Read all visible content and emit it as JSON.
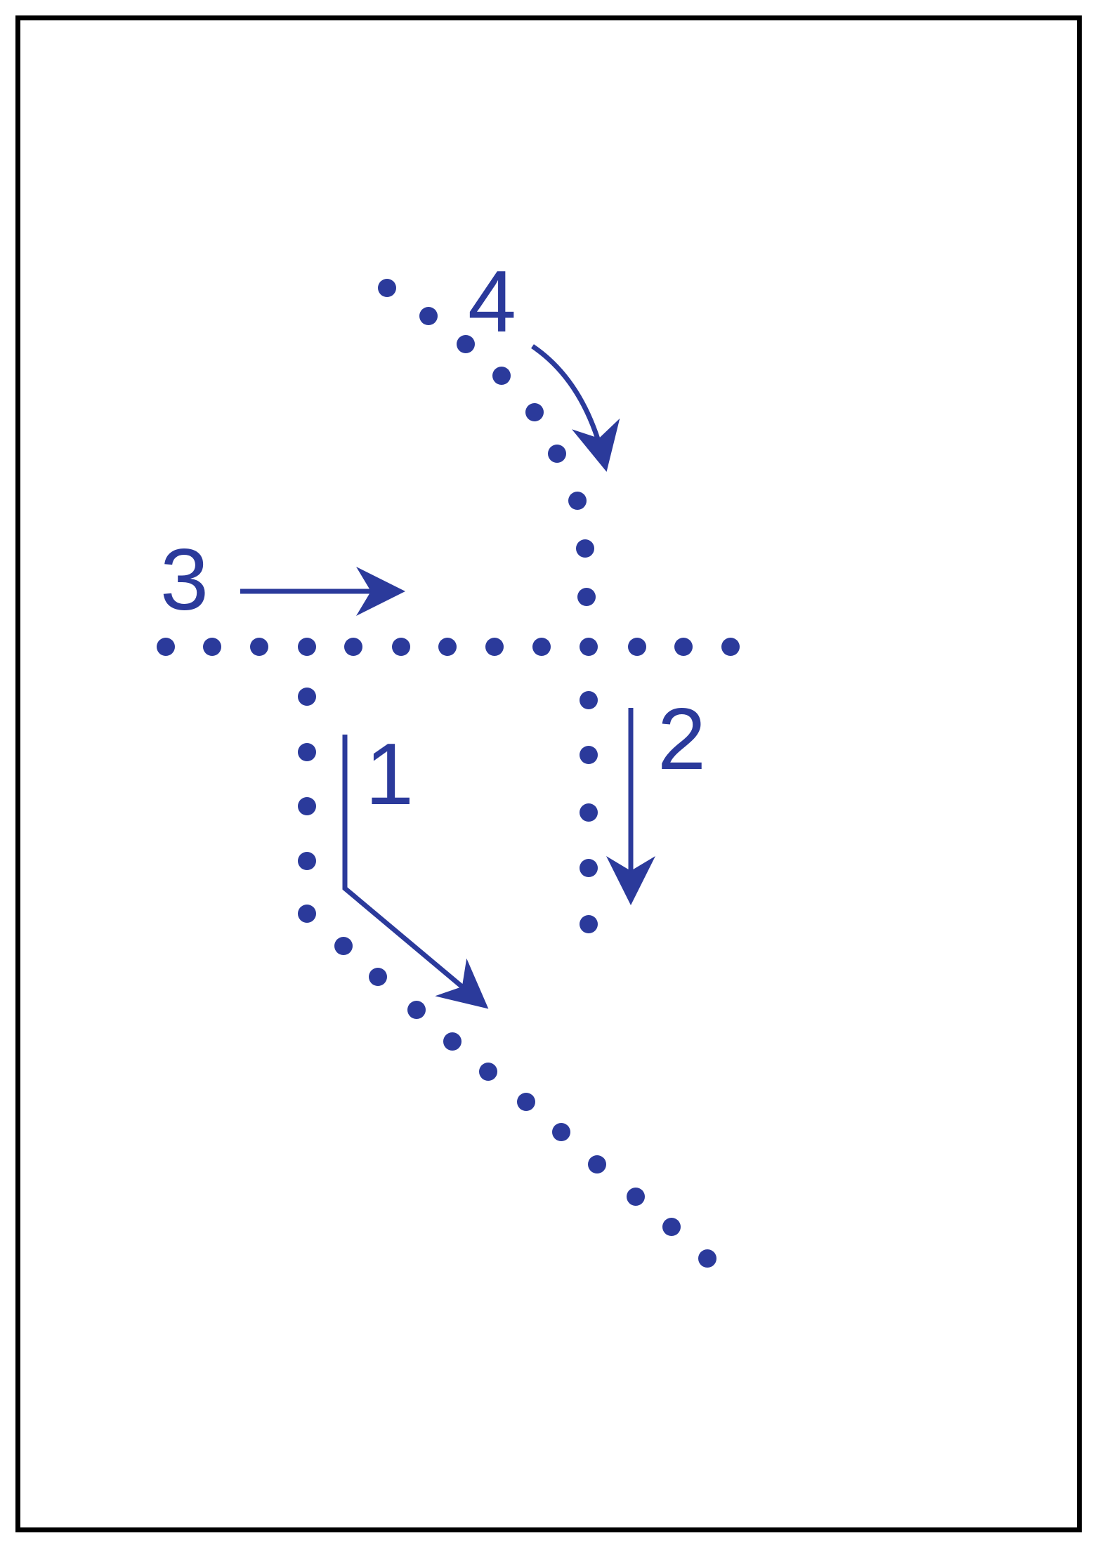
{
  "diagram": {
    "accent_color": "#2b3a9b",
    "frame_color": "#000000",
    "paths": [
      {
        "id": "1",
        "label": "1",
        "arrow_shape": "down-then-diagonal-right"
      },
      {
        "id": "2",
        "label": "2",
        "arrow_shape": "straight-down"
      },
      {
        "id": "3",
        "label": "3",
        "arrow_shape": "straight-right"
      },
      {
        "id": "4",
        "label": "4",
        "arrow_shape": "curved-down-right"
      }
    ]
  }
}
